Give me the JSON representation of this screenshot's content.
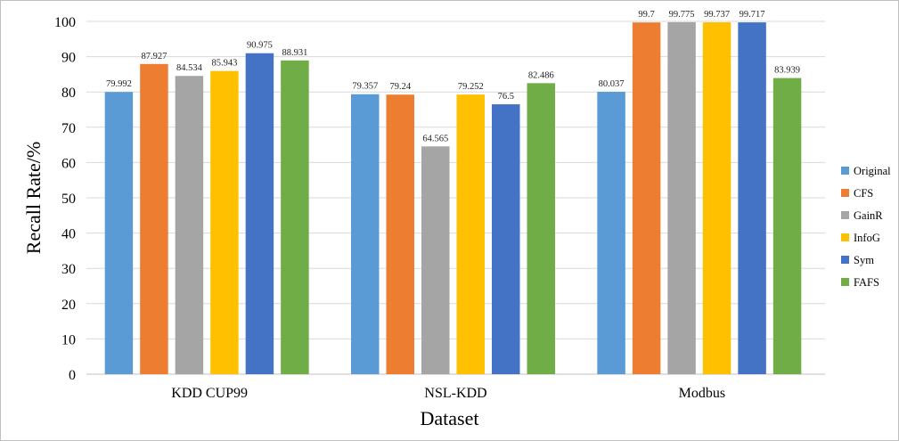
{
  "chart_data": {
    "type": "bar",
    "title": "",
    "xlabel": "Dataset",
    "ylabel": "Recall Rate/%",
    "ylim": [
      0,
      100
    ],
    "yticks": [
      0,
      10,
      20,
      30,
      40,
      50,
      60,
      70,
      80,
      90,
      100
    ],
    "grid": "horizontal",
    "legend_position": "right",
    "categories": [
      "KDD CUP99",
      "NSL-KDD",
      "Modbus"
    ],
    "series": [
      {
        "name": "Original",
        "color": "#5b9bd5",
        "values": [
          79.992,
          79.357,
          80.037
        ],
        "labels": [
          "79.992",
          "79.357",
          "80.037"
        ]
      },
      {
        "name": "CFS",
        "color": "#ed7d31",
        "values": [
          87.927,
          79.24,
          99.7
        ],
        "labels": [
          "87.927",
          "79.24",
          "99.7"
        ]
      },
      {
        "name": "GainR",
        "color": "#a5a5a5",
        "values": [
          84.534,
          64.565,
          99.775
        ],
        "labels": [
          "84.534",
          "64.565",
          "99.775"
        ]
      },
      {
        "name": "InfoG",
        "color": "#ffc000",
        "values": [
          85.943,
          79.252,
          99.737
        ],
        "labels": [
          "85.943",
          "79.252",
          "99.737"
        ]
      },
      {
        "name": "Sym",
        "color": "#4472c4",
        "values": [
          90.975,
          76.5,
          99.717
        ],
        "labels": [
          "90.975",
          "76.5",
          "99.717"
        ]
      },
      {
        "name": "FAFS",
        "color": "#70ad47",
        "values": [
          88.931,
          82.486,
          83.939
        ],
        "labels": [
          "88.931",
          "82.486",
          "83.939"
        ]
      }
    ]
  }
}
